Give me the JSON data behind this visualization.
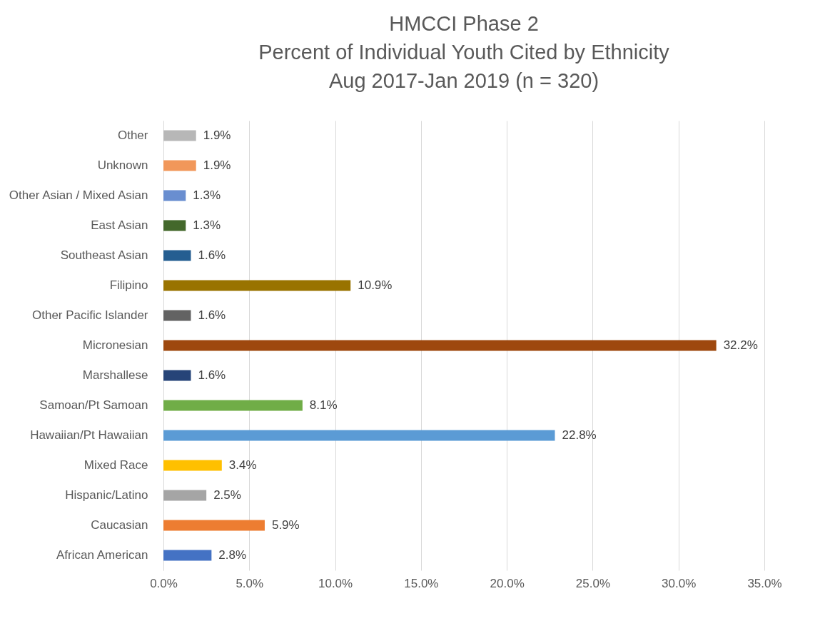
{
  "chart_data": {
    "type": "bar",
    "orientation": "horizontal",
    "title": "HMCCI Phase 2\nPercent of Individual Youth Cited by Ethnicity\nAug 2017-Jan 2019 (n = 320)",
    "categories": [
      "Other",
      "Unknown",
      "Other Asian / Mixed Asian",
      "East Asian",
      "Southeast Asian",
      "Filipino",
      "Other Pacific Islander",
      "Micronesian",
      "Marshallese",
      "Samoan/Pt Samoan",
      "Hawaiian/Pt Hawaiian",
      "Mixed Race",
      "Hispanic/Latino",
      "Caucasian",
      "African American"
    ],
    "values": [
      1.9,
      1.9,
      1.3,
      1.3,
      1.6,
      10.9,
      1.6,
      32.2,
      1.6,
      8.1,
      22.8,
      3.4,
      2.5,
      5.9,
      2.8
    ],
    "value_labels": [
      "1.9%",
      "1.9%",
      "1.3%",
      "1.3%",
      "1.6%",
      "10.9%",
      "1.6%",
      "32.2%",
      "1.6%",
      "8.1%",
      "22.8%",
      "3.4%",
      "2.5%",
      "5.9%",
      "2.8%"
    ],
    "colors": [
      "#b7b7b7",
      "#f1975a",
      "#698ed0",
      "#43682b",
      "#255e91",
      "#997300",
      "#636363",
      "#9e480e",
      "#264478",
      "#70ad47",
      "#5b9bd5",
      "#ffc000",
      "#a5a5a5",
      "#ed7d31",
      "#4472c4"
    ],
    "xlim": [
      0,
      35
    ],
    "xticks": [
      {
        "value": 0,
        "label": "0.0%"
      },
      {
        "value": 5,
        "label": "5.0%"
      },
      {
        "value": 10,
        "label": "10.0%"
      },
      {
        "value": 15,
        "label": "15.0%"
      },
      {
        "value": 20,
        "label": "20.0%"
      },
      {
        "value": 25,
        "label": "25.0%"
      },
      {
        "value": 30,
        "label": "30.0%"
      },
      {
        "value": 35,
        "label": "35.0%"
      }
    ],
    "grid": "x",
    "legend": false
  }
}
